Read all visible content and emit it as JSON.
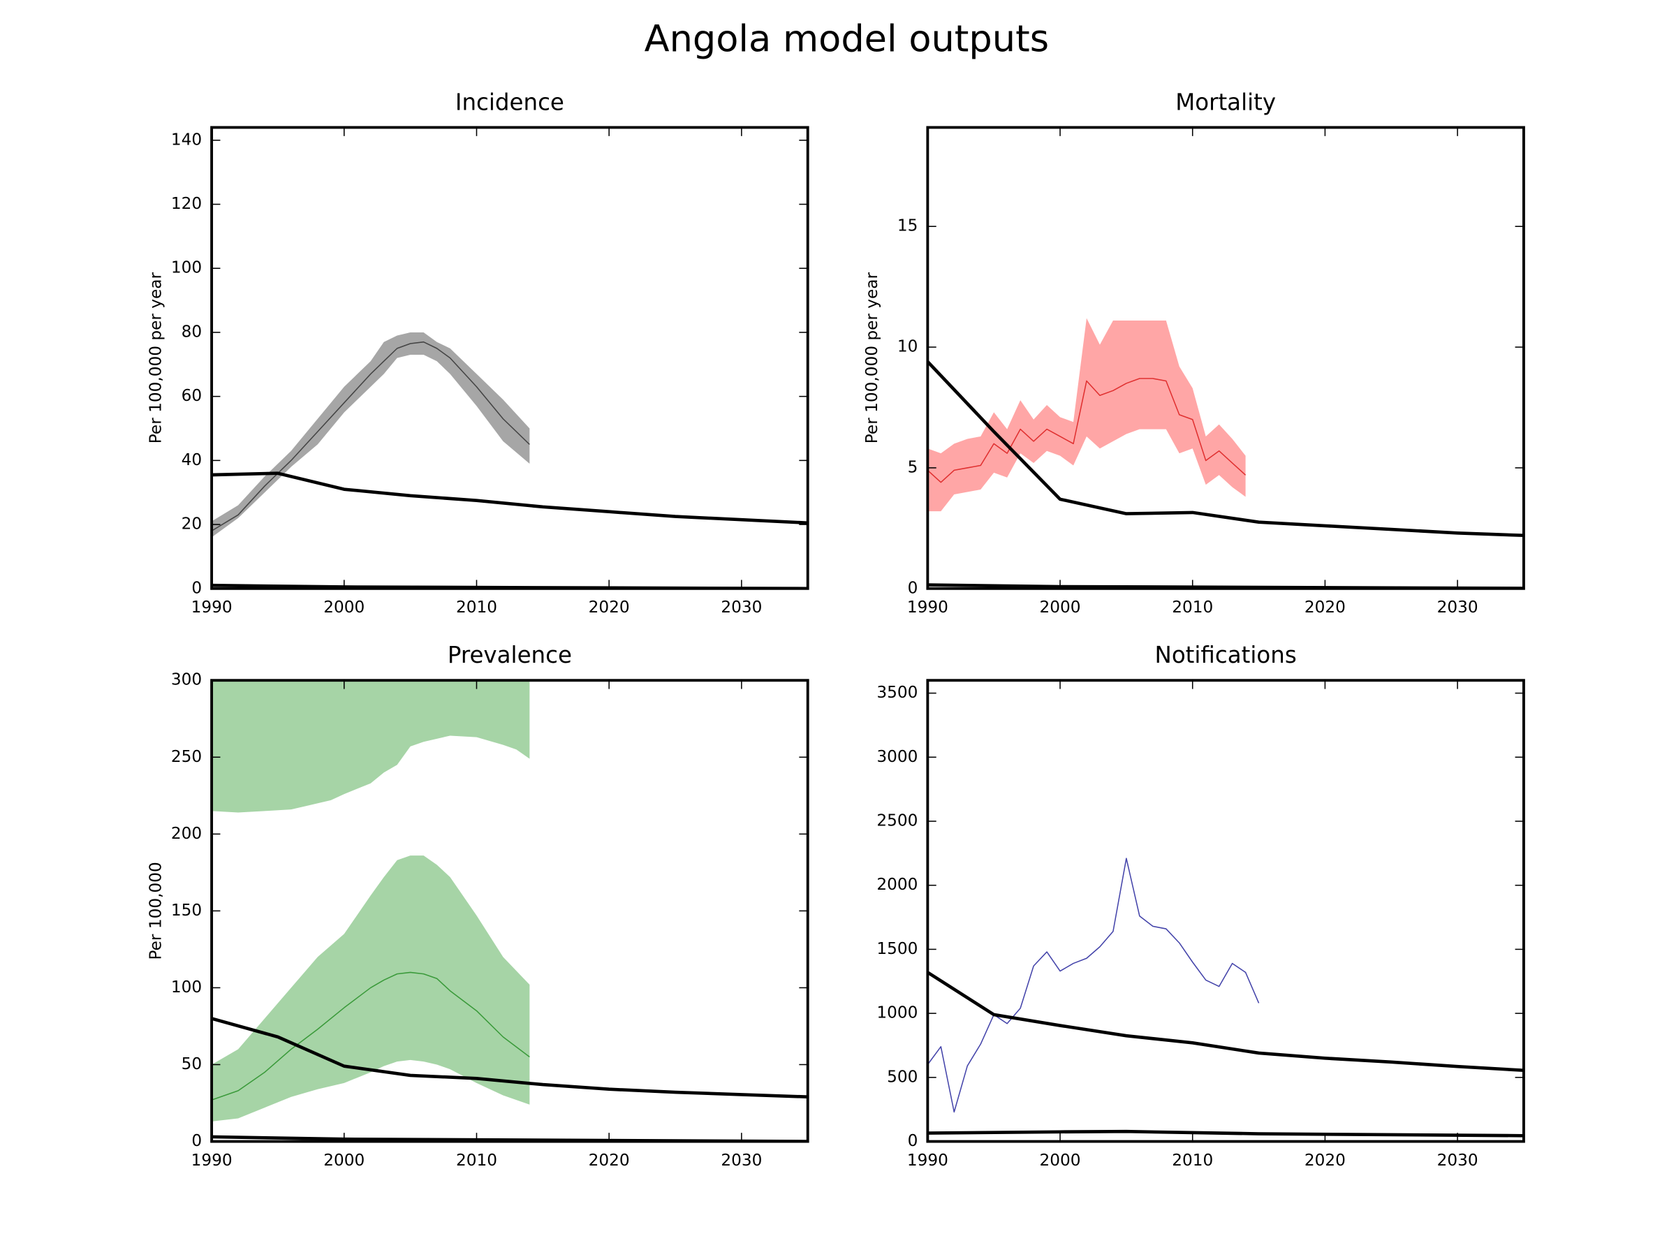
{
  "title": "Angola model outputs",
  "chart_data": [
    {
      "type": "line",
      "title": "Incidence",
      "ylabel": "Per 100,000 per year",
      "xlim": [
        1990,
        2035
      ],
      "xticks": [
        1990,
        2000,
        2010,
        2020,
        2030
      ],
      "ylim": [
        0,
        144
      ],
      "yticks": [
        0,
        20,
        40,
        60,
        80,
        100,
        120,
        140
      ],
      "series": [
        {
          "x": [
            1990,
            1992,
            1994,
            1996,
            1998,
            2000,
            2002,
            2003,
            2004,
            2005,
            2006,
            2007,
            2008,
            2010,
            2012,
            2014
          ],
          "values": [
            18,
            23,
            32,
            40,
            49,
            58,
            67,
            71,
            75,
            76.5,
            77,
            75,
            72,
            63,
            53,
            45
          ],
          "lower": [
            16,
            22,
            30,
            38,
            45,
            55,
            63,
            67,
            72,
            73,
            73,
            71,
            67,
            57,
            46,
            39
          ],
          "upper": [
            21,
            26,
            35,
            43,
            53,
            63,
            71,
            77,
            79,
            80,
            80,
            77,
            75,
            67,
            59,
            50
          ],
          "color": "#444444",
          "band_color": "#a6a6a6",
          "linewidth": 1
        },
        {
          "x": [
            1990,
            1995,
            2000,
            2005,
            2010,
            2015,
            2020,
            2025,
            2030,
            2035
          ],
          "values": [
            35.5,
            36,
            31,
            29,
            27.5,
            25.5,
            24,
            22.5,
            21.5,
            20.5
          ],
          "color": "#000000",
          "linewidth": 3
        },
        {
          "x": [
            1990,
            2000,
            2035
          ],
          "values": [
            1,
            0.5,
            0
          ],
          "color": "#000000",
          "linewidth": 3
        }
      ]
    },
    {
      "type": "line",
      "title": "Mortality",
      "ylabel": "Per 100,000 per year",
      "xlim": [
        1990,
        2035
      ],
      "xticks": [
        1990,
        2000,
        2010,
        2020,
        2030
      ],
      "ylim": [
        0,
        19.1
      ],
      "yticks": [
        0,
        5,
        10,
        15
      ],
      "series": [
        {
          "x": [
            1990,
            1991,
            1992,
            1993,
            1994,
            1995,
            1996,
            1997,
            1998,
            1999,
            2000,
            2001,
            2002,
            2003,
            2004,
            2005,
            2006,
            2007,
            2008,
            2009,
            2010,
            2011,
            2012,
            2013,
            2014
          ],
          "values": [
            4.9,
            4.4,
            4.9,
            5.0,
            5.1,
            6.0,
            5.6,
            6.6,
            6.1,
            6.6,
            6.3,
            6.0,
            8.6,
            8.0,
            8.2,
            8.5,
            8.7,
            8.7,
            8.6,
            7.2,
            7.0,
            5.3,
            5.7,
            5.2,
            4.7
          ],
          "lower": [
            3.2,
            3.2,
            3.9,
            4.0,
            4.1,
            4.8,
            4.6,
            5.6,
            5.2,
            5.7,
            5.5,
            5.1,
            6.3,
            5.8,
            6.1,
            6.4,
            6.6,
            6.6,
            6.6,
            5.6,
            5.8,
            4.3,
            4.7,
            4.2,
            3.8
          ],
          "upper": [
            5.8,
            5.6,
            6.0,
            6.2,
            6.3,
            7.3,
            6.6,
            7.8,
            7.0,
            7.6,
            7.1,
            6.9,
            11.2,
            10.1,
            11.1,
            11.1,
            11.1,
            11.1,
            11.1,
            9.2,
            8.3,
            6.3,
            6.8,
            6.2,
            5.5
          ],
          "color": "#e03030",
          "band_color": "#ffa6a6",
          "linewidth": 1
        },
        {
          "x": [
            1990,
            1995,
            2000,
            2005,
            2010,
            2015,
            2020,
            2025,
            2030,
            2035
          ],
          "values": [
            9.4,
            6.5,
            3.7,
            3.1,
            3.15,
            2.75,
            2.6,
            2.45,
            2.3,
            2.2
          ],
          "color": "#000000",
          "linewidth": 3
        },
        {
          "x": [
            1990,
            2000,
            2035
          ],
          "values": [
            0.15,
            0.08,
            0.01
          ],
          "color": "#000000",
          "linewidth": 3
        }
      ]
    },
    {
      "type": "line",
      "title": "Prevalence",
      "ylabel": "Per 100,000",
      "xlim": [
        1990,
        2035
      ],
      "xticks": [
        1990,
        2000,
        2010,
        2020,
        2030
      ],
      "ylim": [
        0,
        300
      ],
      "yticks": [
        0,
        50,
        100,
        150,
        200,
        250,
        300
      ],
      "series": [
        {
          "x": [
            1990,
            1992,
            1994,
            1996,
            1997,
            1999,
            2000,
            2002,
            2003,
            2004,
            2005,
            2006,
            2008,
            2010,
            2012,
            2013,
            2014
          ],
          "values": [
            215,
            214,
            215,
            216,
            218,
            222,
            226,
            233,
            240,
            245,
            257,
            260,
            264,
            263,
            258,
            255,
            249
          ],
          "fill": "above",
          "band_color": "#a6d4a6"
        },
        {
          "x": [
            1990,
            1992,
            1994,
            1996,
            1998,
            2000,
            2002,
            2003,
            2004,
            2005,
            2006,
            2007,
            2008,
            2010,
            2012,
            2014
          ],
          "values": [
            27,
            33,
            45,
            60,
            73,
            87,
            100,
            105,
            109,
            110,
            109,
            106,
            98,
            85,
            68,
            55
          ],
          "lower": [
            13,
            15,
            22,
            29,
            34,
            38,
            45,
            49,
            52,
            53,
            52,
            50,
            47,
            38,
            30,
            24
          ],
          "upper": [
            50,
            60,
            80,
            100,
            120,
            135,
            160,
            172,
            183,
            186,
            186,
            180,
            172,
            147,
            120,
            102
          ],
          "color": "#3a9a3a",
          "band_color": "#a6d4a6",
          "linewidth": 1
        },
        {
          "x": [
            1990,
            1995,
            2000,
            2005,
            2010,
            2015,
            2020,
            2025,
            2030,
            2035
          ],
          "values": [
            80,
            68,
            49,
            43,
            41,
            37,
            34,
            32,
            30.5,
            29
          ],
          "color": "#000000",
          "linewidth": 3
        },
        {
          "x": [
            1990,
            2000,
            2035
          ],
          "values": [
            3,
            1.5,
            0
          ],
          "color": "#000000",
          "linewidth": 3
        }
      ]
    },
    {
      "type": "line",
      "title": "Notifications",
      "xlim": [
        1990,
        2035
      ],
      "xticks": [
        1990,
        2000,
        2010,
        2020,
        2030
      ],
      "ylim": [
        0,
        3600
      ],
      "yticks": [
        0,
        500,
        1000,
        1500,
        2000,
        2500,
        3000,
        3500
      ],
      "series": [
        {
          "x": [
            1990,
            1991,
            1992,
            1993,
            1994,
            1995,
            1996,
            1997,
            1998,
            1999,
            2000,
            2001,
            2002,
            2003,
            2004,
            2005,
            2006,
            2007,
            2008,
            2009,
            2010,
            2011,
            2012,
            2013,
            2014,
            2015
          ],
          "values": [
            600,
            740,
            230,
            590,
            760,
            990,
            920,
            1040,
            1370,
            1480,
            1330,
            1390,
            1430,
            1520,
            1640,
            2210,
            1760,
            1680,
            1660,
            1550,
            1400,
            1260,
            1210,
            1390,
            1320,
            1080
          ],
          "color": "#4444aa",
          "linewidth": 1
        },
        {
          "x": [
            1990,
            1995,
            2000,
            2005,
            2010,
            2015,
            2020,
            2025,
            2030,
            2035
          ],
          "values": [
            1320,
            990,
            905,
            825,
            770,
            690,
            650,
            620,
            585,
            555
          ],
          "color": "#000000",
          "linewidth": 3
        },
        {
          "x": [
            1990,
            2000,
            2005,
            2015,
            2035
          ],
          "values": [
            65,
            75,
            78,
            60,
            45
          ],
          "color": "#000000",
          "linewidth": 3
        }
      ]
    }
  ]
}
